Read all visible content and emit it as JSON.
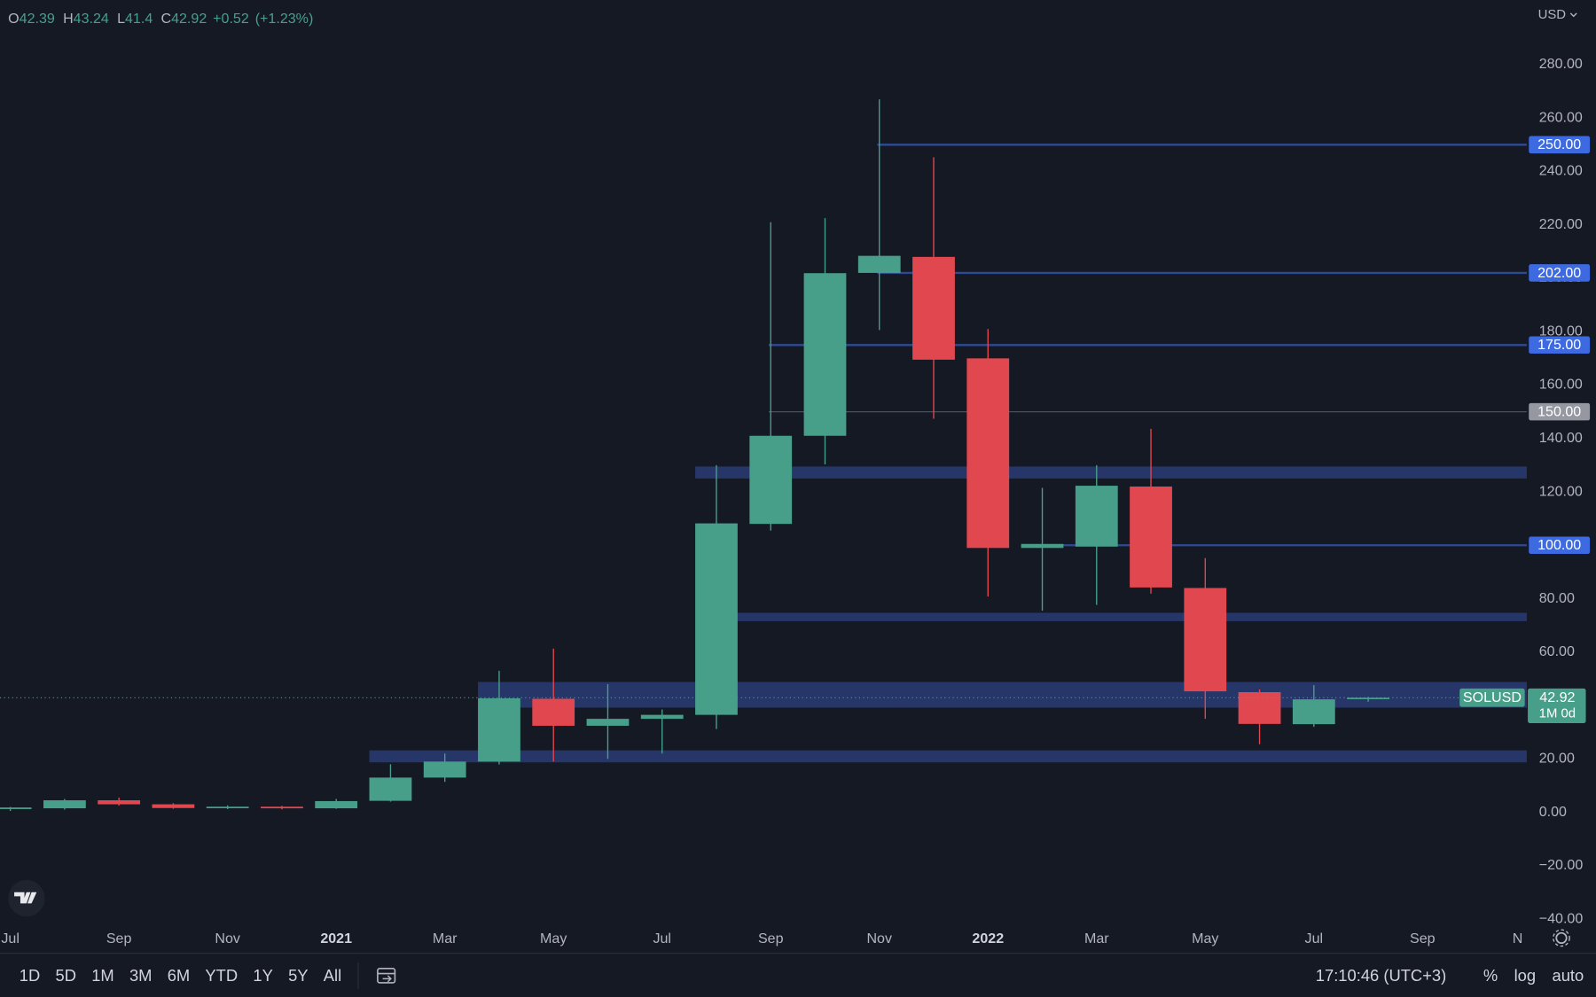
{
  "chart_data": {
    "type": "candlestick",
    "symbol": "SOLUSD",
    "open": [
      1.2,
      1.5,
      4.5,
      3,
      1.6,
      2.1,
      1.5,
      4.3,
      13,
      19,
      42.5,
      32.4,
      35,
      36.5,
      108,
      141,
      202,
      208,
      170,
      99,
      99.5,
      122,
      84,
      45,
      33,
      42.39
    ],
    "high": [
      2,
      5,
      5.5,
      3.4,
      2.6,
      2.4,
      5,
      18,
      22,
      53,
      61.3,
      48,
      38.5,
      130,
      221,
      222.5,
      267,
      245.3,
      181,
      121.5,
      130,
      143.6,
      95.2,
      46,
      47.6,
      43.24
    ],
    "low": [
      0.5,
      1,
      2.5,
      1.3,
      1.2,
      1.1,
      1.3,
      4,
      11.4,
      17.9,
      19,
      20,
      22,
      31.2,
      105.5,
      130.3,
      180.6,
      147.4,
      80.8,
      75.5,
      77.7,
      81.9,
      35,
      25.5,
      32,
      41.4
    ],
    "close": [
      1.8,
      4.5,
      3,
      1.6,
      2.1,
      1.5,
      4.2,
      13,
      19,
      42.7,
      32.4,
      35,
      36.5,
      108.2,
      141,
      201.9,
      208.4,
      169.5,
      99,
      100.5,
      122.3,
      84.2,
      45.3,
      33.1,
      42.3,
      42.92
    ],
    "up_color": "#479f8a",
    "down_color": "#e1474f",
    "xlim": [
      -0.19,
      27.92
    ],
    "xticks": [
      {
        "value": 0,
        "label": "Jul"
      },
      {
        "value": 2,
        "label": "Sep"
      },
      {
        "value": 4,
        "label": "Nov"
      },
      {
        "value": 6,
        "label": "2021"
      },
      {
        "value": 8,
        "label": "Mar"
      },
      {
        "value": 10,
        "label": "May"
      },
      {
        "value": 12,
        "label": "Jul"
      },
      {
        "value": 14,
        "label": "Sep"
      },
      {
        "value": 16,
        "label": "Nov"
      },
      {
        "value": 18,
        "label": "2022"
      },
      {
        "value": 20,
        "label": "Mar"
      },
      {
        "value": 22,
        "label": "May"
      },
      {
        "value": 24,
        "label": "Jul"
      },
      {
        "value": 26,
        "label": "Sep"
      },
      {
        "value": 28,
        "label": "N"
      }
    ],
    "ylim": [
      -42.5,
      304.2
    ],
    "yticks": [
      {
        "value": -40,
        "label": "−40.00"
      },
      {
        "value": -20,
        "label": "−20.00"
      },
      {
        "value": 0,
        "label": "0.00"
      },
      {
        "value": 20,
        "label": "20.00"
      },
      {
        "value": 40,
        "label": "40.00"
      },
      {
        "value": 60,
        "label": "60.00"
      },
      {
        "value": 80,
        "label": "80.00"
      },
      {
        "value": 100,
        "label": "100.00"
      },
      {
        "value": 120,
        "label": "120.00"
      },
      {
        "value": 140,
        "label": "140.00"
      },
      {
        "value": 160,
        "label": "160.00"
      },
      {
        "value": 180,
        "label": "180.00"
      },
      {
        "value": 200,
        "label": "200.00"
      },
      {
        "value": 220,
        "label": "220.00"
      },
      {
        "value": 240,
        "label": "240.00"
      },
      {
        "value": 260,
        "label": "260.00"
      },
      {
        "value": 280,
        "label": "280.00"
      }
    ],
    "grid": false,
    "price_lines": [
      {
        "value": 250,
        "label": "250.00",
        "start": 16,
        "color": "#2e4a93",
        "label_color": "#3d6ae0"
      },
      {
        "value": 202,
        "label": "202.00",
        "start": 16,
        "color": "#2e4a93",
        "label_color": "#3d6ae0"
      },
      {
        "value": 175,
        "label": "175.00",
        "start": 14,
        "color": "#2e4a93",
        "label_color": "#3d6ae0"
      },
      {
        "value": 150,
        "label": "150.00",
        "start": 14,
        "color": "#4a4f5c",
        "label_color": "#9598a1"
      },
      {
        "value": 100,
        "label": "100.00",
        "start": 19,
        "color": "#2e4a93",
        "label_color": "#3d6ae0"
      }
    ],
    "zones": [
      {
        "low": 125,
        "high": 129.5,
        "start": 13
      },
      {
        "low": 71.6,
        "high": 74.7,
        "start": 13
      },
      {
        "low": 39.2,
        "high": 48.8,
        "start": 9
      },
      {
        "low": 18.7,
        "high": 23.2,
        "start": 7
      }
    ],
    "zone_color": "#283a70",
    "countdown": "1M 0d"
  },
  "header": {
    "open_label": "O",
    "high_label": "H",
    "low_label": "L",
    "close_label": "C",
    "change": "+0.52",
    "change_pct": "(+1.23%)"
  },
  "currency": "USD",
  "toolbar": {
    "ranges": [
      "1D",
      "5D",
      "1M",
      "3M",
      "6M",
      "YTD",
      "1Y",
      "5Y",
      "All"
    ],
    "time": "17:10:46 (UTC+3)",
    "options": [
      "%",
      "log",
      "auto"
    ]
  }
}
